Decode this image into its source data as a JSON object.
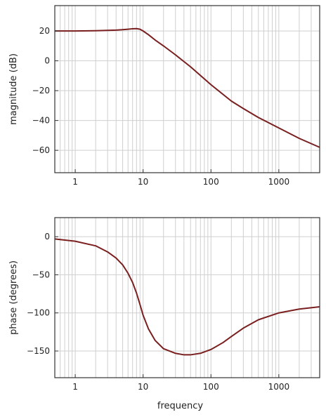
{
  "chart_data": [
    {
      "type": "line",
      "xscale": "log",
      "xlim": [
        0.5,
        4000
      ],
      "ylim": [
        -75,
        37
      ],
      "xticks": [
        1,
        10,
        100,
        1000
      ],
      "xtick_labels": [
        "1",
        "10",
        "100",
        "1000"
      ],
      "yticks": [
        20,
        0,
        -20,
        -40,
        -60
      ],
      "ytick_labels": [
        "20",
        "0",
        "−20",
        "−40",
        "−60"
      ],
      "ylabel": "magnitude (dB)",
      "xlabel": "",
      "grid": true,
      "line_color": "#7a1f1f",
      "series": [
        {
          "x": [
            0.5,
            1,
            2,
            3,
            4,
            5,
            6,
            7,
            8,
            9,
            10,
            12,
            15,
            20,
            30,
            50,
            100,
            200,
            300,
            500,
            1000,
            2000,
            4000
          ],
          "values": [
            20,
            20,
            20.2,
            20.4,
            20.6,
            20.9,
            21.2,
            21.5,
            21.6,
            21.2,
            20.0,
            17.5,
            14,
            10,
            4,
            -4,
            -16,
            -27,
            -32,
            -38,
            -45,
            -52,
            -58
          ]
        }
      ]
    },
    {
      "type": "line",
      "xscale": "log",
      "xlim": [
        0.5,
        4000
      ],
      "ylim": [
        -185,
        25
      ],
      "xticks": [
        1,
        10,
        100,
        1000
      ],
      "xtick_labels": [
        "1",
        "10",
        "100",
        "1000"
      ],
      "yticks": [
        0,
        -50,
        -100,
        -150
      ],
      "ytick_labels": [
        "0",
        "−50",
        "−100",
        "−150"
      ],
      "ylabel": "phase (degrees)",
      "xlabel": "frequency",
      "grid": true,
      "line_color": "#7a1f1f",
      "series": [
        {
          "x": [
            0.5,
            1,
            2,
            3,
            4,
            5,
            6,
            7,
            8,
            9,
            10,
            12,
            15,
            20,
            30,
            40,
            50,
            70,
            100,
            150,
            200,
            300,
            500,
            1000,
            2000,
            4000
          ],
          "values": [
            -3,
            -6,
            -12,
            -20,
            -28,
            -37,
            -48,
            -60,
            -74,
            -89,
            -103,
            -121,
            -136,
            -147,
            -153,
            -155,
            -155,
            -153,
            -148,
            -139,
            -131,
            -120,
            -109,
            -100,
            -95,
            -92
          ]
        }
      ]
    }
  ]
}
